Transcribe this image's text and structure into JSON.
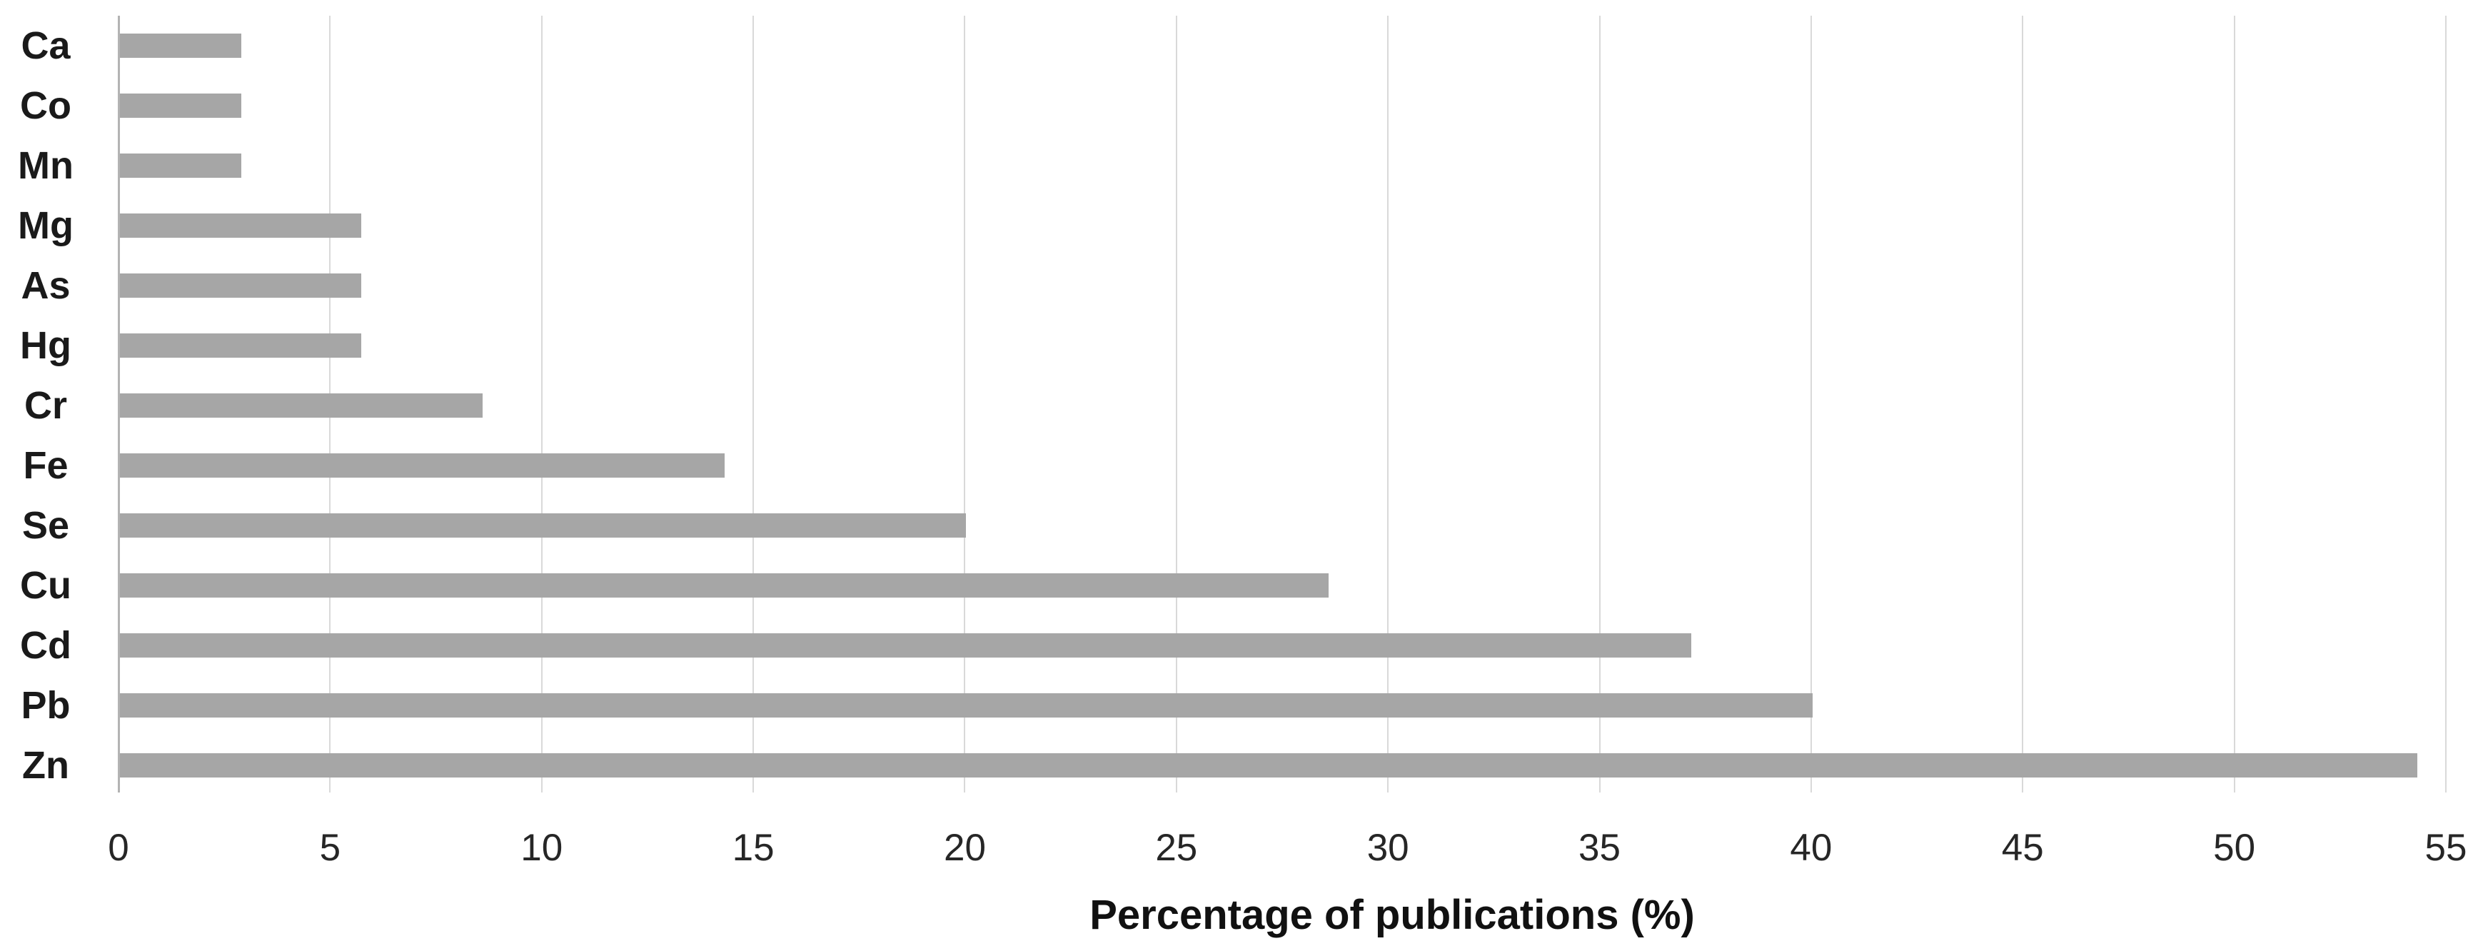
{
  "chart_data": {
    "type": "bar",
    "orientation": "horizontal",
    "title": "",
    "xlabel": "Percentage of publications (%)",
    "ylabel": "",
    "categories": [
      "Ca",
      "Co",
      "Mn",
      "Mg",
      "As",
      "Hg",
      "Cr",
      "Fe",
      "Se",
      "Cu",
      "Cd",
      "Pb",
      "Zn"
    ],
    "values": [
      2.86,
      2.86,
      2.86,
      5.71,
      5.71,
      5.71,
      8.57,
      14.29,
      20,
      28.57,
      37.14,
      40,
      54.29
    ],
    "xlim": [
      0,
      55
    ],
    "xticks": [
      0,
      5,
      10,
      15,
      20,
      25,
      30,
      35,
      40,
      45,
      50,
      55
    ],
    "grid": "vertical-gridlines-on",
    "legend": "none",
    "colors": {
      "bar": "#a6a6a6",
      "gridline": "#d9d9d9",
      "zero_axis_line": "#b3b3b3",
      "text": "#1a1a1a"
    }
  }
}
